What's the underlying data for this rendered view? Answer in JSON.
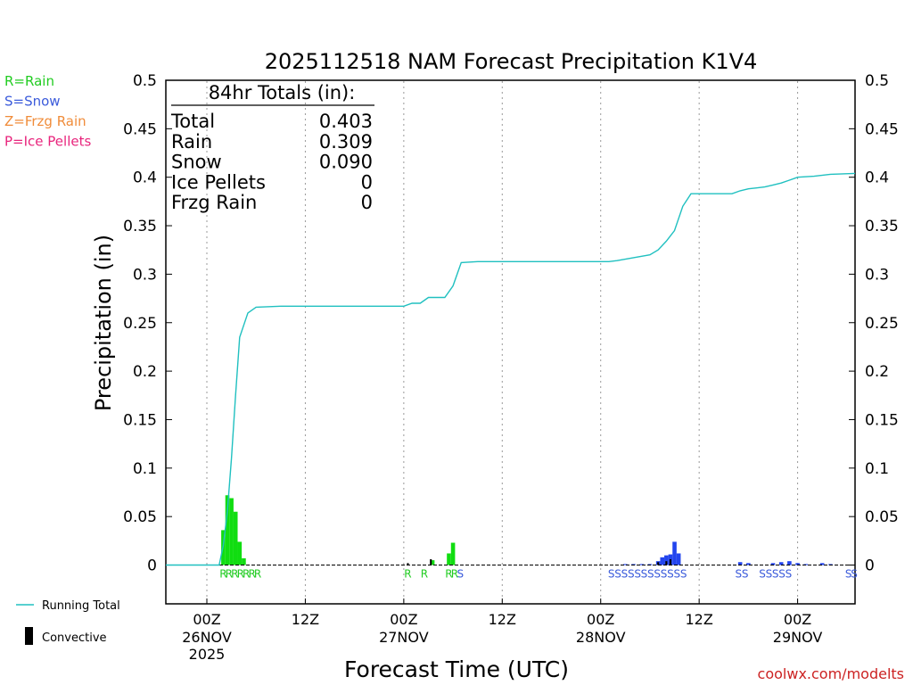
{
  "chart_data": {
    "type": "bar",
    "title": "2025112518 NAM Forecast Precipitation K1V4",
    "ylabel": "Precipitation (in)",
    "xlabel": "Forecast Time (UTC)",
    "ylim": [
      -0.04,
      0.5
    ],
    "y_ticks": [
      0,
      0.05,
      0.1,
      0.15,
      0.2,
      0.25,
      0.3,
      0.35,
      0.4,
      0.45,
      0.5
    ],
    "y_tick_labels": [
      "0",
      "0.05",
      "0.1",
      "0.15",
      "0.2",
      "0.25",
      "0.3",
      "0.35",
      "0.4",
      "0.45",
      "0.5"
    ],
    "x_range_hours": [
      -5,
      79
    ],
    "x_ticks": [
      {
        "hour": 0,
        "label": "00Z",
        "date": "26NOV",
        "year": "2025"
      },
      {
        "hour": 12,
        "label": "12Z",
        "date": "",
        "year": ""
      },
      {
        "hour": 24,
        "label": "00Z",
        "date": "27NOV",
        "year": ""
      },
      {
        "hour": 36,
        "label": "12Z",
        "date": "",
        "year": ""
      },
      {
        "hour": 48,
        "label": "00Z",
        "date": "28NOV",
        "year": ""
      },
      {
        "hour": 60,
        "label": "12Z",
        "date": "",
        "year": ""
      },
      {
        "hour": 72,
        "label": "00Z",
        "date": "29NOV",
        "year": ""
      }
    ],
    "grid": "vertical dotted",
    "totals": {
      "header": "84hr Totals (in):",
      "rows": [
        {
          "label": "Total",
          "value": "0.403"
        },
        {
          "label": "Rain",
          "value": "0.309"
        },
        {
          "label": "Snow",
          "value": "0.090"
        },
        {
          "label": "Ice Pellets",
          "value": "0"
        },
        {
          "label": "Frzg Rain",
          "value": "0"
        }
      ]
    },
    "ptype_legend": [
      {
        "text": "R=Rain",
        "color": "#22cc22"
      },
      {
        "text": "S=Snow",
        "color": "#3b5bdb"
      },
      {
        "text": "Z=Frzg Rain",
        "color": "#f08c3a"
      },
      {
        "text": "P=Ice Pellets",
        "color": "#e8247c"
      }
    ],
    "series": [
      {
        "name": "Running Total",
        "color": "#20c0c0",
        "points": [
          [
            -5,
            0
          ],
          [
            0,
            0
          ],
          [
            1,
            0
          ],
          [
            1.5,
            0
          ],
          [
            2,
            0.02
          ],
          [
            2.5,
            0.055
          ],
          [
            3,
            0.11
          ],
          [
            3.5,
            0.175
          ],
          [
            4,
            0.235
          ],
          [
            5,
            0.26
          ],
          [
            6,
            0.266
          ],
          [
            9,
            0.267
          ],
          [
            24,
            0.267
          ],
          [
            25,
            0.27
          ],
          [
            26,
            0.27
          ],
          [
            27,
            0.276
          ],
          [
            29,
            0.276
          ],
          [
            30,
            0.288
          ],
          [
            31,
            0.312
          ],
          [
            33,
            0.313
          ],
          [
            49,
            0.313
          ],
          [
            50,
            0.314
          ],
          [
            52,
            0.317
          ],
          [
            54,
            0.32
          ],
          [
            55,
            0.325
          ],
          [
            56,
            0.334
          ],
          [
            57,
            0.345
          ],
          [
            58,
            0.37
          ],
          [
            59,
            0.383
          ],
          [
            64,
            0.383
          ],
          [
            65,
            0.386
          ],
          [
            66,
            0.388
          ],
          [
            67,
            0.389
          ],
          [
            68,
            0.39
          ],
          [
            69,
            0.392
          ],
          [
            70,
            0.394
          ],
          [
            71,
            0.397
          ],
          [
            72,
            0.4
          ],
          [
            74,
            0.401
          ],
          [
            76,
            0.403
          ],
          [
            79,
            0.404
          ]
        ]
      },
      {
        "name": "Rain",
        "color": "#11dd11",
        "bars": [
          [
            2,
            0.036
          ],
          [
            2.5,
            0.072
          ],
          [
            3,
            0.069
          ],
          [
            3.5,
            0.055
          ],
          [
            4,
            0.024
          ],
          [
            4.5,
            0.007
          ],
          [
            27.5,
            0.005
          ],
          [
            29.5,
            0.012
          ],
          [
            30,
            0.023
          ]
        ]
      },
      {
        "name": "Snow",
        "color": "#2244ee",
        "bars": [
          [
            51,
            0.001
          ],
          [
            52,
            0.001
          ],
          [
            53,
            0.001
          ],
          [
            54,
            0.001
          ],
          [
            55,
            0.004
          ],
          [
            55.5,
            0.008
          ],
          [
            56,
            0.01
          ],
          [
            56.5,
            0.011
          ],
          [
            57,
            0.024
          ],
          [
            57.5,
            0.012
          ],
          [
            65,
            0.003
          ],
          [
            66,
            0.002
          ],
          [
            69,
            0.002
          ],
          [
            70,
            0.003
          ],
          [
            71,
            0.004
          ],
          [
            72,
            0.002
          ],
          [
            73,
            0.001
          ],
          [
            75,
            0.002
          ],
          [
            76,
            0.001
          ]
        ]
      },
      {
        "name": "Convective",
        "color": "#000000",
        "bars": [
          [
            24.5,
            0.002
          ],
          [
            27.3,
            0.006
          ],
          [
            55,
            0.003
          ],
          [
            56,
            0.004
          ],
          [
            56.5,
            0.006
          ]
        ]
      }
    ],
    "ptype_marks": [
      {
        "hour": 2,
        "ch": "R"
      },
      {
        "hour": 2.7,
        "ch": "R"
      },
      {
        "hour": 3.4,
        "ch": "R"
      },
      {
        "hour": 4.1,
        "ch": "R"
      },
      {
        "hour": 4.8,
        "ch": "R"
      },
      {
        "hour": 5.5,
        "ch": "R"
      },
      {
        "hour": 6.2,
        "ch": "R"
      },
      {
        "hour": 24.5,
        "ch": "R"
      },
      {
        "hour": 26.5,
        "ch": "R"
      },
      {
        "hour": 29.5,
        "ch": "R"
      },
      {
        "hour": 30.2,
        "ch": "R"
      },
      {
        "hour": 30.9,
        "ch": "S"
      },
      {
        "hour": 49.3,
        "ch": "S"
      },
      {
        "hour": 50.1,
        "ch": "S"
      },
      {
        "hour": 50.9,
        "ch": "S"
      },
      {
        "hour": 51.7,
        "ch": "S"
      },
      {
        "hour": 52.5,
        "ch": "S"
      },
      {
        "hour": 53.3,
        "ch": "S"
      },
      {
        "hour": 54.1,
        "ch": "S"
      },
      {
        "hour": 54.9,
        "ch": "S"
      },
      {
        "hour": 55.7,
        "ch": "S"
      },
      {
        "hour": 56.5,
        "ch": "S"
      },
      {
        "hour": 57.3,
        "ch": "S"
      },
      {
        "hour": 58.1,
        "ch": "S"
      },
      {
        "hour": 64.8,
        "ch": "S"
      },
      {
        "hour": 65.6,
        "ch": "S"
      },
      {
        "hour": 67.7,
        "ch": "S"
      },
      {
        "hour": 68.5,
        "ch": "S"
      },
      {
        "hour": 69.3,
        "ch": "S"
      },
      {
        "hour": 70.1,
        "ch": "S"
      },
      {
        "hour": 70.9,
        "ch": "S"
      },
      {
        "hour": 78.2,
        "ch": "S"
      },
      {
        "hour": 78.9,
        "ch": "S"
      }
    ],
    "legend": [
      {
        "text": "Running Total",
        "type": "line"
      },
      {
        "text": "Convective",
        "type": "bar"
      }
    ]
  },
  "credit": "coolwx.com/modelts"
}
